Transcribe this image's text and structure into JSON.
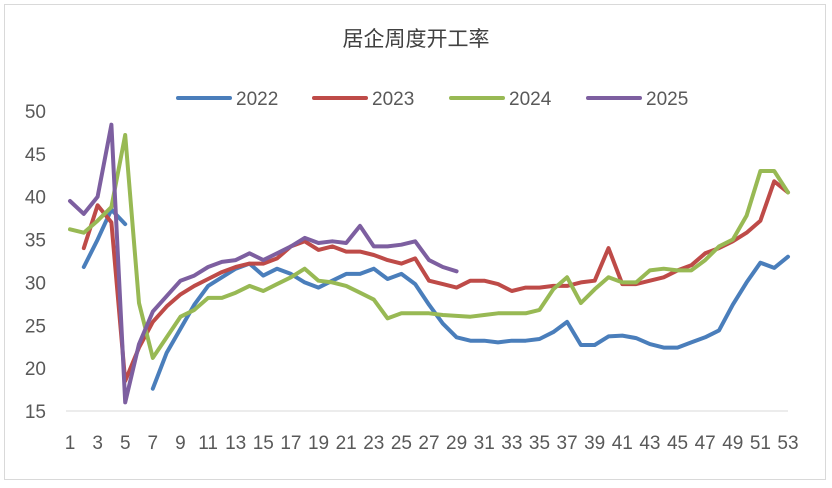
{
  "chart_data": {
    "type": "line",
    "title": "居企周度开工率",
    "xlabel": "",
    "ylabel": "",
    "ylim": [
      15,
      50
    ],
    "y_ticks": [
      15,
      20,
      25,
      30,
      35,
      40,
      45,
      50
    ],
    "x_ticks": [
      1,
      3,
      5,
      7,
      9,
      11,
      13,
      15,
      17,
      19,
      21,
      23,
      25,
      27,
      29,
      31,
      33,
      35,
      37,
      39,
      41,
      43,
      45,
      47,
      49,
      51,
      53
    ],
    "xlim": [
      1,
      53
    ],
    "grid": false,
    "legend_position": "top",
    "series": [
      {
        "name": "2022",
        "color": "#4a7ebb",
        "x": [
          2,
          3,
          4,
          5,
          null,
          7,
          8,
          9,
          10,
          11,
          12,
          13,
          14,
          15,
          16,
          17,
          18,
          19,
          20,
          21,
          22,
          23,
          24,
          25,
          26,
          27,
          28,
          29,
          30,
          31,
          32,
          33,
          34,
          35,
          36,
          37,
          38,
          39,
          40,
          41,
          42,
          43,
          44,
          45,
          46,
          47,
          48,
          49,
          50,
          51,
          52,
          53
        ],
        "values": [
          31.8,
          35,
          38.5,
          36.8,
          null,
          17.6,
          21.8,
          24.6,
          27.4,
          29.6,
          30.6,
          31.6,
          32.2,
          30.8,
          31.6,
          31,
          30,
          29.4,
          30.2,
          31,
          31,
          31.6,
          30.4,
          31,
          29.8,
          27.4,
          25.2,
          23.6,
          23.2,
          23.2,
          23,
          23.2,
          23.2,
          23.4,
          24.2,
          25.4,
          22.7,
          22.7,
          23.7,
          23.8,
          23.5,
          22.8,
          22.4,
          22.4,
          23,
          23.6,
          24.4,
          27.4,
          30,
          32.3,
          31.7,
          33
        ]
      },
      {
        "name": "2023",
        "color": "#be4b48",
        "x": [
          2,
          3,
          4,
          5,
          6,
          7,
          8,
          9,
          10,
          11,
          12,
          13,
          14,
          15,
          16,
          17,
          18,
          19,
          20,
          21,
          22,
          23,
          24,
          25,
          26,
          27,
          28,
          29,
          30,
          31,
          32,
          33,
          34,
          35,
          36,
          37,
          38,
          39,
          40,
          41,
          42,
          43,
          44,
          45,
          46,
          47,
          48,
          49,
          50,
          51,
          52,
          53
        ],
        "values": [
          34,
          39,
          37,
          18.5,
          22.4,
          25.4,
          27.2,
          28.6,
          29.6,
          30.4,
          31.2,
          31.8,
          32.2,
          32.2,
          32.8,
          34.2,
          34.8,
          33.8,
          34.2,
          33.6,
          33.6,
          33.2,
          32.6,
          32.2,
          32.8,
          30.2,
          29.8,
          29.4,
          30.2,
          30.2,
          29.8,
          29,
          29.4,
          29.4,
          29.6,
          29.6,
          30,
          30.2,
          34,
          29.8,
          29.8,
          30.2,
          30.6,
          31.4,
          32,
          33.4,
          34,
          34.8,
          35.8,
          37.2,
          41.8,
          40.5
        ]
      },
      {
        "name": "2024",
        "color": "#98b954",
        "x": [
          1,
          2,
          3,
          4,
          5,
          6,
          7,
          8,
          9,
          10,
          11,
          12,
          13,
          14,
          15,
          16,
          17,
          18,
          19,
          20,
          21,
          22,
          23,
          24,
          25,
          26,
          27,
          28,
          29,
          30,
          31,
          32,
          33,
          34,
          35,
          36,
          37,
          38,
          39,
          40,
          41,
          42,
          43,
          44,
          45,
          46,
          47,
          48,
          49,
          50,
          51,
          52,
          53
        ],
        "values": [
          36.2,
          35.8,
          37.2,
          38.8,
          47.2,
          27.6,
          21.2,
          23.6,
          26,
          26.8,
          28.2,
          28.2,
          28.8,
          29.6,
          29,
          29.8,
          30.6,
          31.6,
          30.2,
          30,
          29.6,
          28.8,
          28,
          25.8,
          26.4,
          26.4,
          26.4,
          26.2,
          26.1,
          26,
          26.2,
          26.4,
          26.4,
          26.4,
          26.8,
          29.2,
          30.6,
          27.6,
          29.2,
          30.6,
          30,
          30,
          31.4,
          31.6,
          31.4,
          31.4,
          32.6,
          34.2,
          35,
          37.8,
          43,
          43,
          40.5
        ]
      },
      {
        "name": "2025",
        "color": "#7d5fa0",
        "x": [
          1,
          2,
          3,
          4,
          5,
          6,
          7,
          8,
          9,
          10,
          11,
          12,
          13,
          14,
          15,
          16,
          17,
          18,
          19,
          20,
          21,
          22,
          23,
          24,
          25,
          26,
          27,
          28,
          29
        ],
        "values": [
          39.5,
          38,
          40,
          48.4,
          16,
          22.8,
          26.6,
          28.4,
          30.2,
          30.8,
          31.8,
          32.4,
          32.6,
          33.4,
          32.6,
          33.4,
          34.2,
          35.2,
          34.6,
          34.8,
          34.6,
          36.6,
          34.2,
          34.2,
          34.4,
          34.8,
          32.6,
          31.8,
          31.3
        ]
      }
    ]
  }
}
